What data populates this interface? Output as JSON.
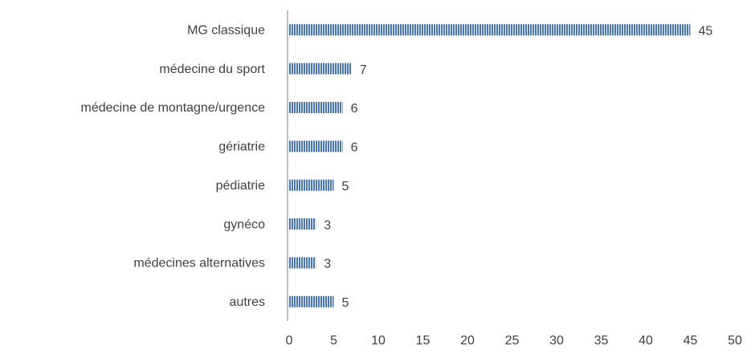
{
  "chart_data": {
    "type": "bar",
    "orientation": "horizontal",
    "categories": [
      "MG classique",
      "médecine du sport",
      "médecine de montagne/urgence",
      "gériatrie",
      "pédiatrie",
      "gynéco",
      "médecines alternatives",
      "autres"
    ],
    "values": [
      45,
      7,
      6,
      6,
      5,
      3,
      3,
      5
    ],
    "color": "#4472c4",
    "xlim": [
      0,
      50
    ],
    "xticks": [
      0,
      5,
      10,
      15,
      20,
      25,
      30,
      35,
      40,
      45,
      50
    ],
    "grid": false
  }
}
